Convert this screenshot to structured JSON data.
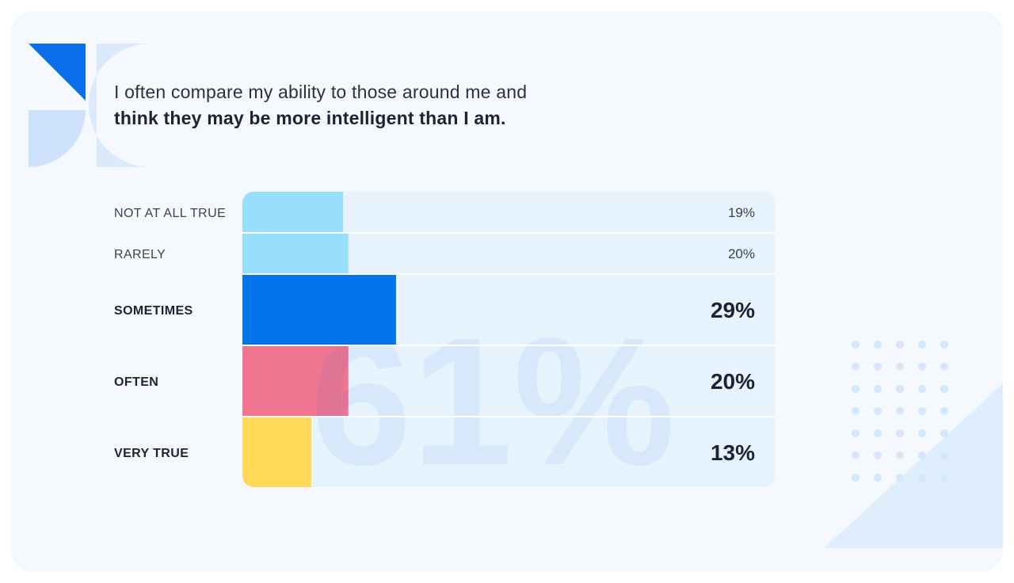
{
  "title": {
    "line1": "I often compare my ability to those around me and",
    "line2": "think they may be more intelligent than I am."
  },
  "watermark": "61%",
  "colors": {
    "card_bg": "#f5f9fe",
    "track_bg": "#e6f2fc",
    "light_blue": "#97dffc",
    "blue": "#0573ea",
    "pink": "#f07590",
    "yellow": "#ffd957",
    "text_dark": "#1c2433",
    "text_light": "#3b4251",
    "accent_blue": "#0b6ee9",
    "pale_blue": "#d3e5fb",
    "dot_blue": "#d6e7fb"
  },
  "chart_data": {
    "type": "bar",
    "orientation": "horizontal",
    "categories": [
      "NOT AT ALL TRUE",
      "RARELY",
      "SOMETIMES",
      "OFTEN",
      "VERY TRUE"
    ],
    "values": [
      19,
      20,
      29,
      20,
      13
    ],
    "value_labels": [
      "19%",
      "20%",
      "29%",
      "20%",
      "13%"
    ],
    "emphasized": [
      false,
      false,
      true,
      true,
      true
    ],
    "bar_colors": [
      "#97dffc",
      "#97dffc",
      "#0573ea",
      "#f07590",
      "#ffd957"
    ],
    "xlim": [
      0,
      100
    ],
    "grid": false,
    "legend": "none"
  }
}
